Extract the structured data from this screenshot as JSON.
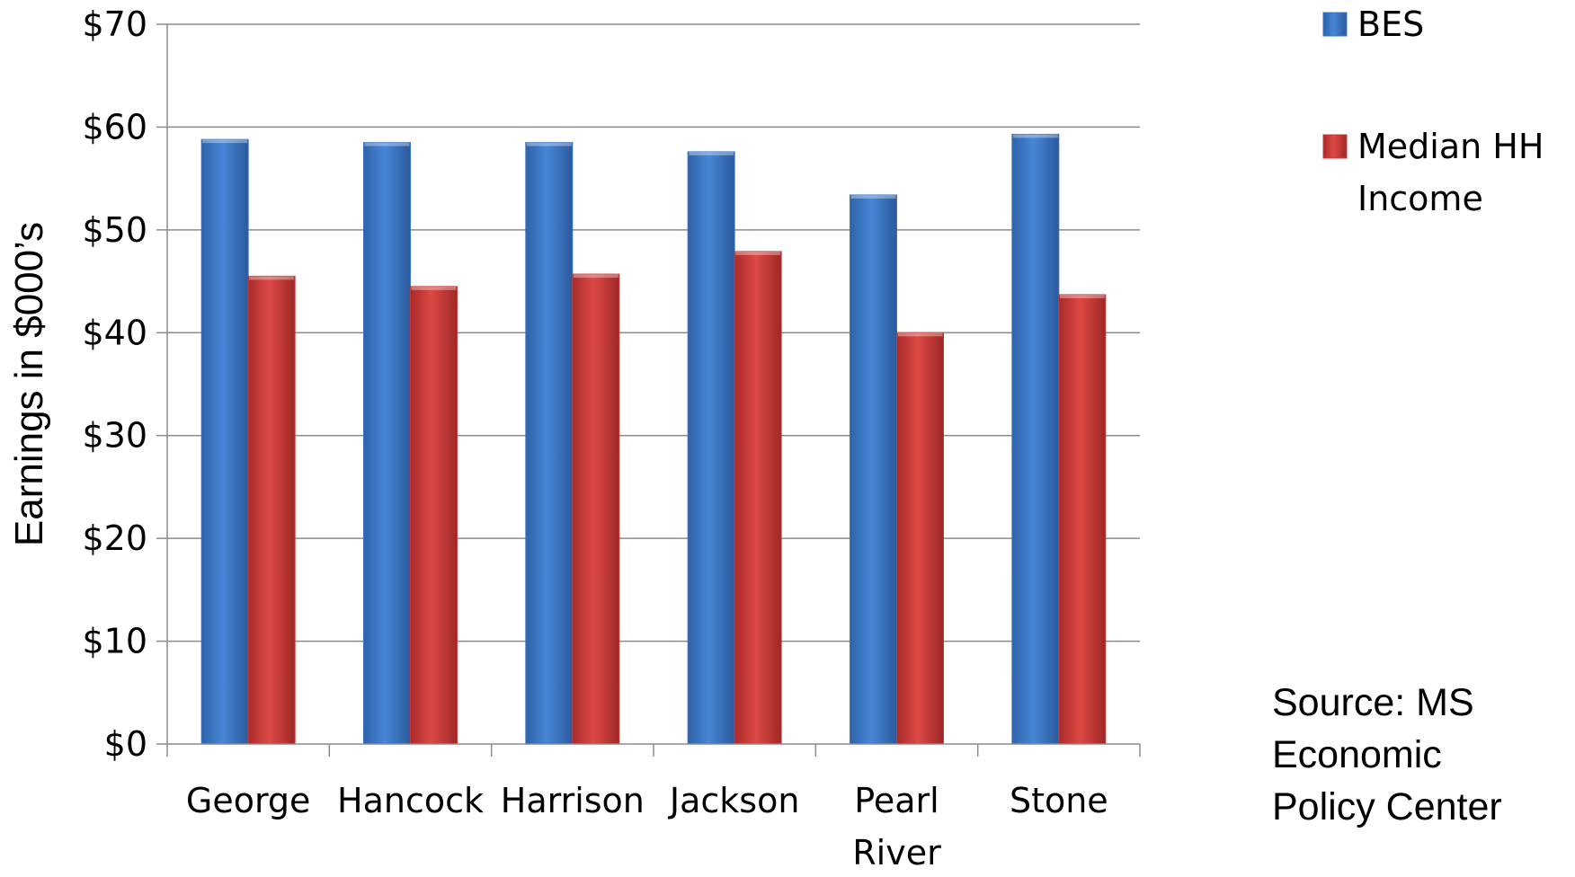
{
  "chart_data": {
    "type": "bar",
    "categories": [
      "George",
      "Hancock",
      "Harrison",
      "Jackson",
      "Pearl River",
      "Stone"
    ],
    "category_lines": [
      [
        "George"
      ],
      [
        "Hancock"
      ],
      [
        "Harrison"
      ],
      [
        "Jackson"
      ],
      [
        "Pearl",
        "River"
      ],
      [
        "Stone"
      ]
    ],
    "series": [
      {
        "name": "BES",
        "values": [
          58.8,
          58.5,
          58.5,
          57.6,
          53.4,
          59.3
        ],
        "color": "#3a75c4"
      },
      {
        "name": "Median HH Income",
        "values": [
          45.5,
          44.5,
          45.7,
          47.9,
          40.0,
          43.7
        ],
        "color": "#c73a37"
      }
    ],
    "legend_labels": [
      [
        "BES"
      ],
      [
        "Median HH",
        "Income"
      ]
    ],
    "ylabel": "Earnings in $000’s",
    "ylim": [
      0,
      70
    ],
    "yticks": [
      0,
      10,
      20,
      30,
      40,
      50,
      60,
      70
    ],
    "ytick_labels": [
      "$0",
      "$10",
      "$20",
      "$30",
      "$40",
      "$50",
      "$60",
      "$70"
    ],
    "grid": true,
    "legend_position": "right"
  },
  "source_note": [
    "Source: MS",
    "Economic",
    "Policy Center"
  ]
}
